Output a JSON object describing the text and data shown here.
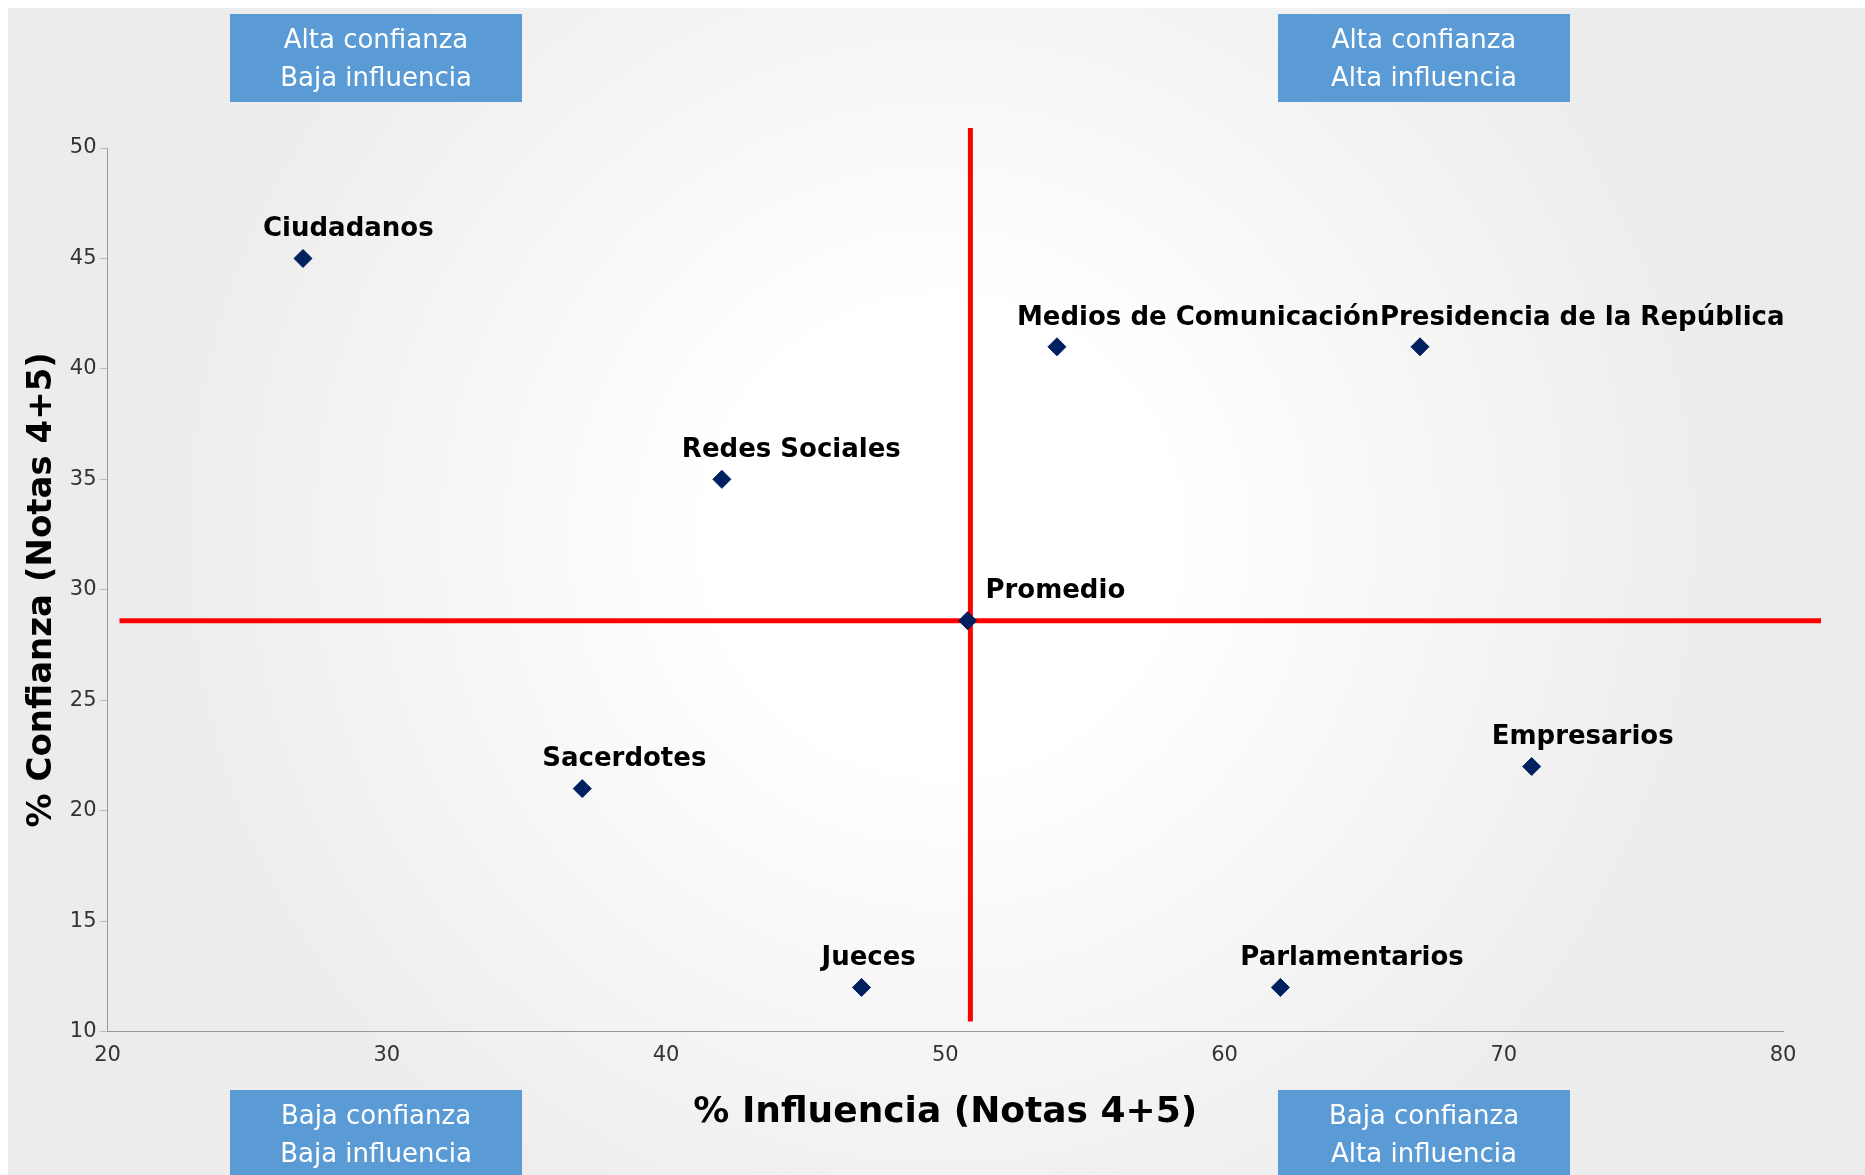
{
  "chart_data": {
    "type": "scatter",
    "xlabel": "% Influencia (Notas 4+5)",
    "ylabel": "% Confianza (Notas 4+5)",
    "xlim": [
      20,
      80
    ],
    "xticks": [
      20,
      30,
      40,
      50,
      60,
      70,
      80
    ],
    "ylim": [
      10,
      50
    ],
    "yticks": [
      10,
      15,
      20,
      25,
      30,
      35,
      40,
      45,
      50
    ],
    "grid": false,
    "legend": false,
    "marker": "diamond",
    "series": [
      {
        "name": "Ciudadanos",
        "color": "#002060",
        "x": [
          27
        ],
        "values": [
          45
        ]
      },
      {
        "name": "Medios de Comunicación",
        "color": "#002060",
        "x": [
          54
        ],
        "values": [
          41
        ]
      },
      {
        "name": "Presidencia de la República",
        "color": "#002060",
        "x": [
          67
        ],
        "values": [
          41
        ]
      },
      {
        "name": "Redes Sociales",
        "color": "#002060",
        "x": [
          42
        ],
        "values": [
          35
        ]
      },
      {
        "name": "Promedio",
        "color": "#002060",
        "x": [
          50.8
        ],
        "values": [
          28.6
        ]
      },
      {
        "name": "Empresarios",
        "color": "#002060",
        "x": [
          71
        ],
        "values": [
          22
        ]
      },
      {
        "name": "Sacerdotes",
        "color": "#002060",
        "x": [
          37
        ],
        "values": [
          21
        ]
      },
      {
        "name": "Jueces",
        "color": "#002060",
        "x": [
          47
        ],
        "values": [
          12
        ]
      },
      {
        "name": "Parlamentarios",
        "color": "#002060",
        "x": [
          62
        ],
        "values": [
          12
        ]
      }
    ],
    "ref_lines": [
      {
        "axis": "x",
        "value": 50.9,
        "color": "#ff0000"
      },
      {
        "axis": "y",
        "value": 28.6,
        "color": "#ff0000"
      }
    ],
    "annotations": [
      "Alta confianza\nBaja influencia",
      "Alta confianza\nAlta influencia",
      "Baja confianza\nBaja influencia",
      "Baja confianza\nAlta influencia"
    ]
  }
}
